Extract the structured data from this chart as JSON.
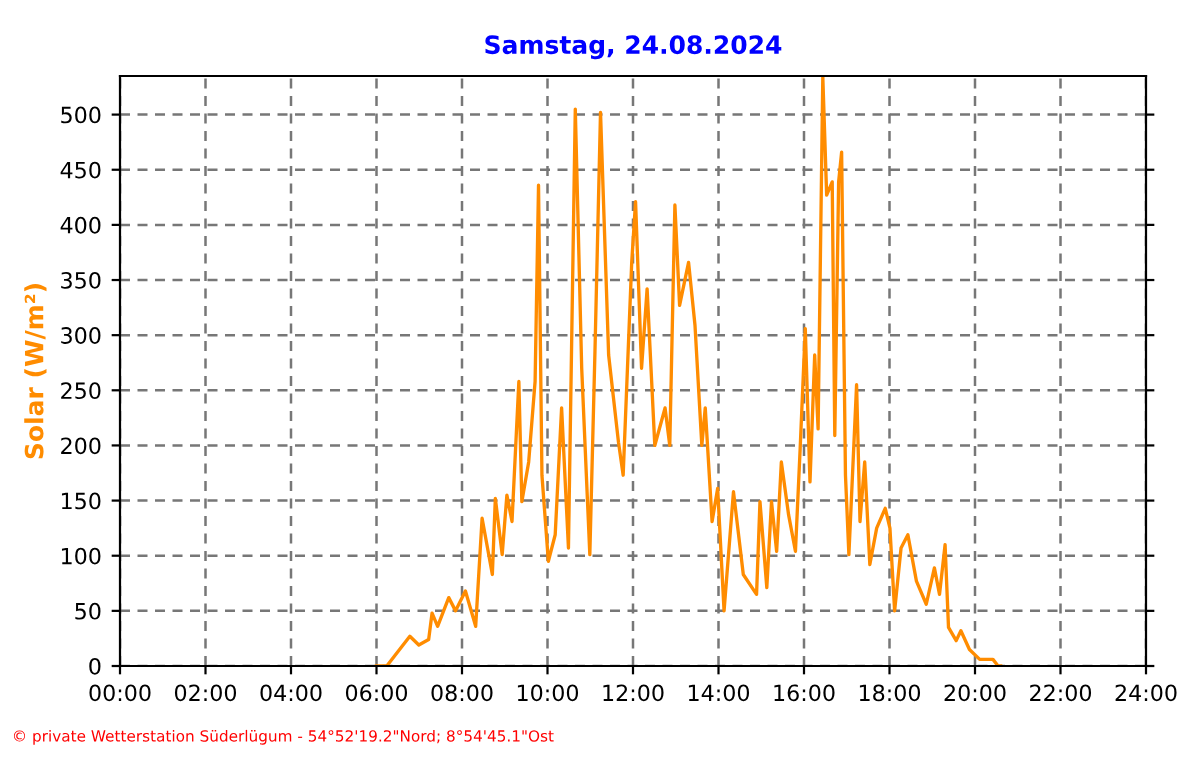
{
  "chart_data": {
    "type": "line",
    "title": "Samstag, 24.08.2024",
    "ylabel": "Solar (W/m²)",
    "annotations": [
      "© private Wetterstation Süderlügum - 54°52'19.2\"Nord; 8°54'45.1\"Ost"
    ],
    "x": [
      6.0,
      6.24,
      6.78,
      6.99,
      7.22,
      7.3,
      7.43,
      7.69,
      7.85,
      8.08,
      8.32,
      8.47,
      8.71,
      8.78,
      8.94,
      9.05,
      9.17,
      9.33,
      9.4,
      9.56,
      9.71,
      9.79,
      9.87,
      10.02,
      10.18,
      10.33,
      10.49,
      10.65,
      10.8,
      10.99,
      11.11,
      11.24,
      11.43,
      11.66,
      11.77,
      11.97,
      12.06,
      12.2,
      12.33,
      12.51,
      12.75,
      12.86,
      12.98,
      13.09,
      13.3,
      13.45,
      13.61,
      13.69,
      13.85,
      13.98,
      14.13,
      14.35,
      14.58,
      14.89,
      14.97,
      15.13,
      15.24,
      15.36,
      15.47,
      15.64,
      15.8,
      15.91,
      16.03,
      16.14,
      16.25,
      16.33,
      16.44,
      16.53,
      16.66,
      16.72,
      16.81,
      16.88,
      16.97,
      17.05,
      17.23,
      17.31,
      17.42,
      17.54,
      17.7,
      17.9,
      18.01,
      18.12,
      18.27,
      18.43,
      18.63,
      18.86,
      19.05,
      19.17,
      19.3,
      19.38,
      19.56,
      19.67,
      19.87,
      20.11,
      20.42,
      20.54,
      20.6
    ],
    "series": [
      {
        "color": "#ff8c00",
        "values": [
          0,
          0,
          27,
          19,
          24,
          48,
          36,
          62,
          50,
          68,
          36,
          134,
          83,
          152,
          101,
          155,
          131,
          258,
          149,
          185,
          258,
          436,
          173,
          95,
          119,
          234,
          107,
          505,
          270,
          101,
          285,
          502,
          282,
          203,
          173,
          366,
          421,
          270,
          342,
          200,
          234,
          200,
          418,
          327,
          366,
          309,
          200,
          234,
          131,
          161,
          50,
          158,
          83,
          65,
          149,
          71,
          149,
          104,
          185,
          137,
          104,
          197,
          306,
          167,
          282,
          215,
          534,
          427,
          439,
          209,
          439,
          466,
          173,
          101,
          255,
          131,
          185,
          92,
          125,
          143,
          125,
          50,
          107,
          119,
          77,
          56,
          89,
          65,
          110,
          35,
          23,
          32,
          15,
          6,
          6,
          0,
          0
        ]
      }
    ],
    "xlim": [
      0,
      24
    ],
    "ylim": [
      0,
      535
    ],
    "xticks": [
      {
        "value": 0,
        "label": "00:00"
      },
      {
        "value": 2,
        "label": "02:00"
      },
      {
        "value": 4,
        "label": "04:00"
      },
      {
        "value": 6,
        "label": "06:00"
      },
      {
        "value": 8,
        "label": "08:00"
      },
      {
        "value": 10,
        "label": "10:00"
      },
      {
        "value": 12,
        "label": "12:00"
      },
      {
        "value": 14,
        "label": "14:00"
      },
      {
        "value": 16,
        "label": "16:00"
      },
      {
        "value": 18,
        "label": "18:00"
      },
      {
        "value": 20,
        "label": "20:00"
      },
      {
        "value": 22,
        "label": "22:00"
      },
      {
        "value": 24,
        "label": "24:00"
      }
    ],
    "yticks": [
      0,
      50,
      100,
      150,
      200,
      250,
      300,
      350,
      400,
      450,
      500
    ],
    "grid": true,
    "legend": false,
    "marker": "none",
    "line_style": "solid"
  }
}
